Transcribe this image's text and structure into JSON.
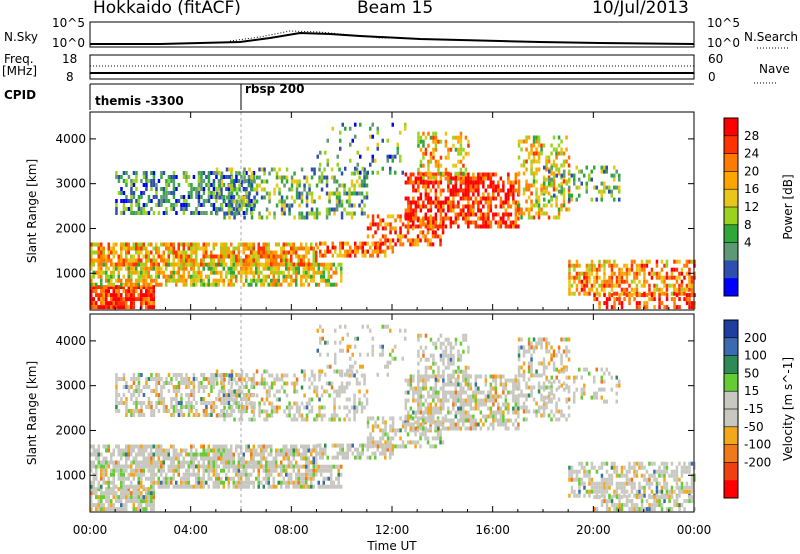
{
  "header": {
    "station": "Hokkaido (fitACF)",
    "beam": "Beam 15",
    "date": "10/Jul/2013"
  },
  "noise_panel": {
    "left_label": "N.Sky",
    "right_label": "N.Search",
    "left_ticks": [
      "10^5",
      "10^0"
    ],
    "right_ticks": [
      "10^5",
      "10^0"
    ]
  },
  "freq_panel": {
    "left_label_line1": "Freq.",
    "left_label_line2": "[MHz]",
    "right_label": "Nave",
    "left_ticks": [
      "18",
      "8"
    ],
    "right_ticks": [
      "60",
      "0"
    ]
  },
  "cpid_panel": {
    "label": "CPID",
    "segments": [
      {
        "label": "themis -3300",
        "start_hour": 0
      },
      {
        "label": "rbsp 200",
        "start_hour": 6
      }
    ]
  },
  "chart_data": [
    {
      "type": "heatmap",
      "ylabel": "Slant Range [km]",
      "yticks": [
        1000,
        2000,
        3000,
        4000
      ],
      "ylim": [
        180,
        4600
      ],
      "xlim": [
        0,
        24
      ],
      "colorbar": {
        "label": "Power [dB]",
        "ticks": [
          "28",
          "24",
          "20",
          "16",
          "12",
          "8",
          "4"
        ],
        "colors": [
          "#ff0000",
          "#ff3300",
          "#ff7a00",
          "#ffa500",
          "#e9c71a",
          "#9bd21f",
          "#2fa83a",
          "#5d9a73",
          "#2f4fb0",
          "#0000ff"
        ]
      },
      "features": [
        {
          "desc": "band",
          "hours": [
            0,
            10
          ],
          "range_km": [
            300,
            1700
          ]
        },
        {
          "desc": "band",
          "hours": [
            1,
            6
          ],
          "range_km": [
            2300,
            3300
          ]
        },
        {
          "desc": "arc",
          "hours": [
            13,
            18
          ],
          "range_km": [
            1700,
            3300
          ]
        }
      ]
    },
    {
      "type": "heatmap",
      "xlabel": "Time UT",
      "ylabel": "Slant Range [km]",
      "yticks": [
        1000,
        2000,
        3000,
        4000
      ],
      "ylim": [
        180,
        4600
      ],
      "xticks": [
        "00:00",
        "04:00",
        "08:00",
        "12:00",
        "16:00",
        "20:00",
        "00:00"
      ],
      "xlim": [
        0,
        24
      ],
      "colorbar": {
        "label": "Velocity [m s^-1]",
        "ticks": [
          "200",
          "100",
          "50",
          "15",
          "-15",
          "-50",
          "-100",
          "-200"
        ],
        "colors": [
          "#1f3fa0",
          "#3a6bb0",
          "#2e8b57",
          "#66cc33",
          "#c8c8c0",
          "#c8c8c0",
          "#f2a81a",
          "#f07a1a",
          "#f04010",
          "#ff0000"
        ]
      }
    }
  ]
}
